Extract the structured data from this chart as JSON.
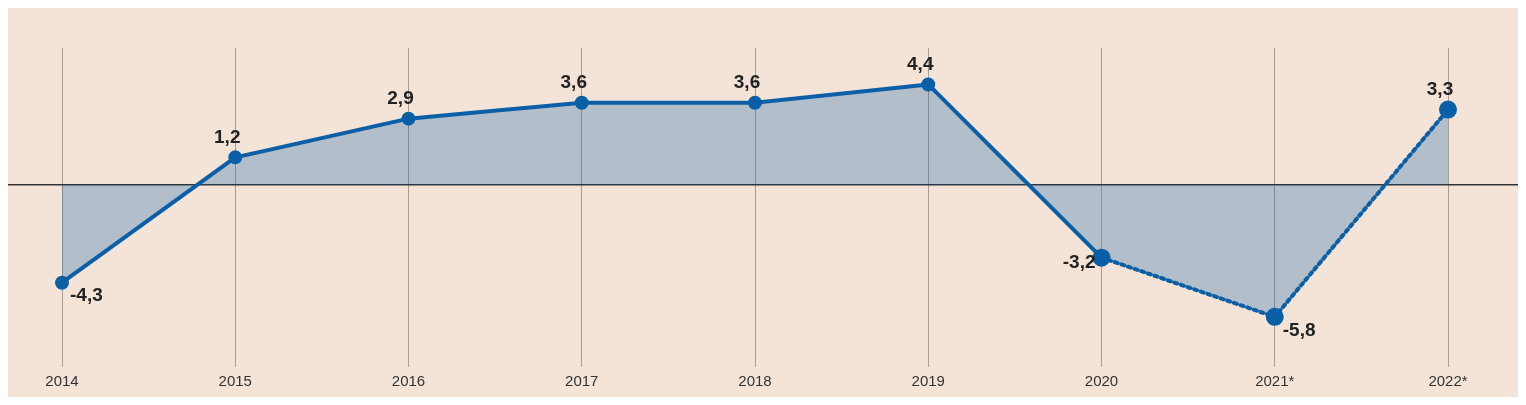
{
  "chart_data": {
    "type": "area",
    "categories": [
      "2014",
      "2015",
      "2016",
      "2017",
      "2018",
      "2019",
      "2020",
      "2021*",
      "2022*"
    ],
    "series": [
      {
        "color": "#0a5fa6",
        "line_style": "solid",
        "values": [
          -4.3,
          1.2,
          2.9,
          3.6,
          3.6,
          4.4,
          -3.2,
          null,
          null
        ],
        "value_labels": [
          "-4,3",
          "1,2",
          "2,9",
          "3,6",
          "3,6",
          "4,4",
          "-3,2",
          null,
          null
        ]
      },
      {
        "color": "#0a5fa6",
        "line_style": "dotted",
        "values": [
          null,
          null,
          null,
          null,
          null,
          null,
          -3.2,
          -5.8,
          3.3
        ],
        "value_labels": [
          null,
          null,
          null,
          null,
          null,
          null,
          null,
          "-5,8",
          "3,3"
        ]
      }
    ],
    "tick_labels": "x",
    "grid": "x",
    "marker": "circle",
    "legend": false
  }
}
